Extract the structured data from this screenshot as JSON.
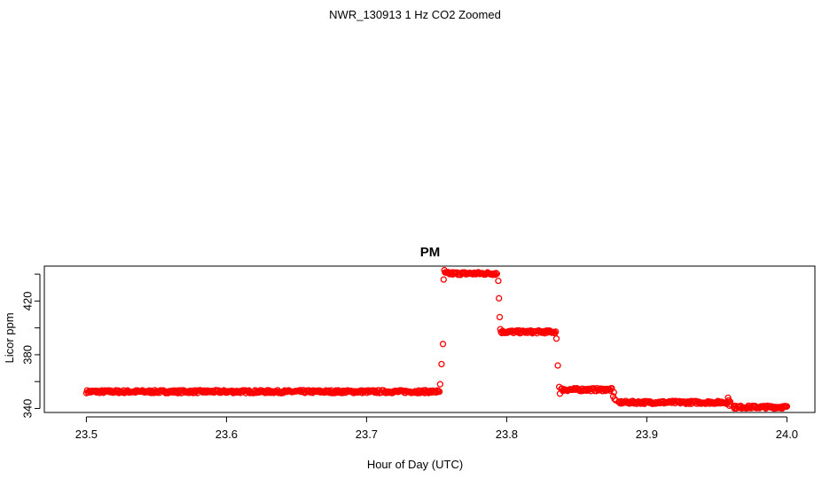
{
  "page": {
    "title": "NWR_130913  1 Hz CO2 Zoomed"
  },
  "chart_data": {
    "type": "scatter",
    "title": "PM",
    "xlabel": "Hour of Day (UTC)",
    "ylabel": "Licor ppm",
    "xlim": [
      23.47,
      24.02
    ],
    "ylim": [
      337,
      446
    ],
    "x_ticks": [
      23.5,
      23.6,
      23.7,
      23.8,
      23.9,
      24.0
    ],
    "x_tick_labels": [
      "23.5",
      "23.6",
      "23.7",
      "23.8",
      "23.9",
      "24.0"
    ],
    "y_ticks": [
      340,
      360,
      380,
      400,
      420,
      440
    ],
    "y_tick_labels": [
      "340",
      "",
      "380",
      "",
      "420",
      ""
    ],
    "grid": false,
    "marker": "open-circle",
    "color": "#ff0000",
    "segments": [
      {
        "x_start": 23.5,
        "x_end": 23.752,
        "y": 352.5
      },
      {
        "x_start": 23.756,
        "x_end": 23.793,
        "y": 440.5
      },
      {
        "x_start": 23.796,
        "x_end": 23.835,
        "y": 397.0
      },
      {
        "x_start": 23.839,
        "x_end": 23.875,
        "y": 354.0
      },
      {
        "x_start": 23.88,
        "x_end": 23.958,
        "y": 344.5
      },
      {
        "x_start": 23.962,
        "x_end": 24.0,
        "y": 341.0
      }
    ],
    "transition_points": [
      {
        "x": 23.7525,
        "y": 358
      },
      {
        "x": 23.7535,
        "y": 373
      },
      {
        "x": 23.7545,
        "y": 388
      },
      {
        "x": 23.755,
        "y": 436
      },
      {
        "x": 23.7555,
        "y": 443
      },
      {
        "x": 23.794,
        "y": 435
      },
      {
        "x": 23.7945,
        "y": 422
      },
      {
        "x": 23.795,
        "y": 408
      },
      {
        "x": 23.7955,
        "y": 399
      },
      {
        "x": 23.8355,
        "y": 392
      },
      {
        "x": 23.8365,
        "y": 372
      },
      {
        "x": 23.8375,
        "y": 356
      },
      {
        "x": 23.838,
        "y": 351
      },
      {
        "x": 23.876,
        "y": 349
      },
      {
        "x": 23.8765,
        "y": 352
      },
      {
        "x": 23.877,
        "y": 347
      },
      {
        "x": 23.878,
        "y": 346
      },
      {
        "x": 23.958,
        "y": 348
      },
      {
        "x": 23.9585,
        "y": 346
      },
      {
        "x": 23.959,
        "y": 342
      },
      {
        "x": 23.9595,
        "y": 345
      },
      {
        "x": 23.96,
        "y": 343
      }
    ]
  }
}
